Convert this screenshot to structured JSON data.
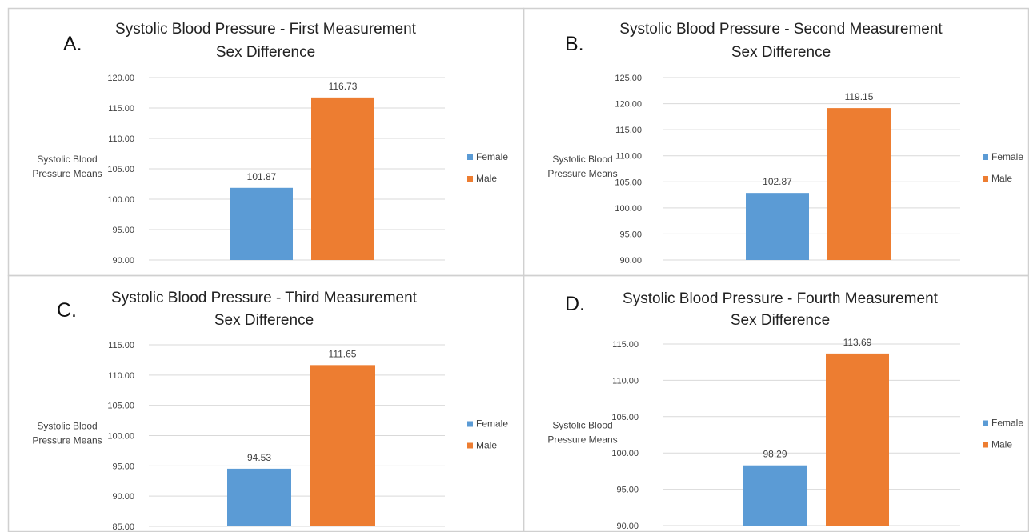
{
  "legend_labels": {
    "female": "Female",
    "male": "Male"
  },
  "colors": {
    "female": "#5b9bd5",
    "male": "#ed7d31",
    "grid": "#d9d9d9",
    "border": "#d0d0d0",
    "text": "#404040"
  },
  "chart_data": [
    {
      "type": "bar",
      "panel_label": "A.",
      "title": "Systolic Blood Pressure - First Measurement",
      "subtitle": "Sex Difference",
      "ylabel": "Systolic Blood Pressure Means",
      "xlabel": "",
      "categories": [
        "Female",
        "Male"
      ],
      "values": [
        101.87,
        116.73
      ],
      "value_labels": [
        "101.87",
        "116.73"
      ],
      "ylim": [
        90,
        120
      ],
      "yticks": [
        "90.00",
        "95.00",
        "100.00",
        "105.00",
        "110.00",
        "115.00",
        "120.00"
      ],
      "grid": true,
      "legend_position": "right"
    },
    {
      "type": "bar",
      "panel_label": "B.",
      "title": "Systolic Blood Pressure - Second Measurement",
      "subtitle": "Sex Difference",
      "ylabel": "Systolic Blood Pressure Means",
      "xlabel": "",
      "categories": [
        "Female",
        "Male"
      ],
      "values": [
        102.87,
        119.15
      ],
      "value_labels": [
        "102.87",
        "119.15"
      ],
      "ylim": [
        90,
        125
      ],
      "yticks": [
        "90.00",
        "95.00",
        "100.00",
        "105.00",
        "110.00",
        "115.00",
        "120.00",
        "125.00"
      ],
      "grid": true,
      "legend_position": "right"
    },
    {
      "type": "bar",
      "panel_label": "C.",
      "title": "Systolic Blood Pressure - Third Measurement",
      "subtitle": "Sex Difference",
      "ylabel": "Systolic Blood Pressure Means",
      "xlabel": "",
      "categories": [
        "Female",
        "Male"
      ],
      "values": [
        94.53,
        111.65
      ],
      "value_labels": [
        "94.53",
        "111.65"
      ],
      "ylim": [
        85,
        115
      ],
      "yticks": [
        "85.00",
        "90.00",
        "95.00",
        "100.00",
        "105.00",
        "110.00",
        "115.00"
      ],
      "grid": true,
      "legend_position": "right"
    },
    {
      "type": "bar",
      "panel_label": "D.",
      "title": "Systolic Blood Pressure - Fourth Measurement",
      "subtitle": "Sex Difference",
      "ylabel": "Systolic Blood Pressure Means",
      "xlabel": "",
      "categories": [
        "Female",
        "Male"
      ],
      "values": [
        98.29,
        113.69
      ],
      "value_labels": [
        "98.29",
        "113.69"
      ],
      "ylim": [
        90,
        115
      ],
      "yticks": [
        "90.00",
        "95.00",
        "100.00",
        "105.00",
        "110.00",
        "115.00"
      ],
      "grid": true,
      "legend_position": "right"
    }
  ]
}
